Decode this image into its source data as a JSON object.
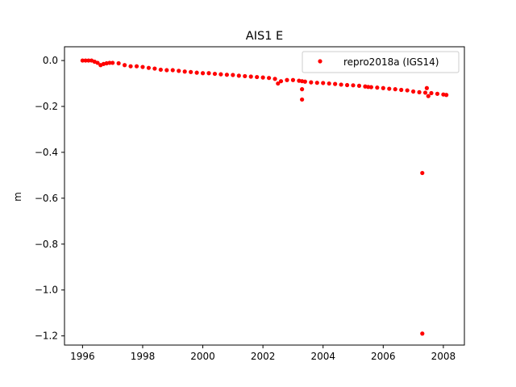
{
  "chart_data": {
    "type": "scatter",
    "title": "AIS1 E",
    "xlabel": "",
    "ylabel": "m",
    "xlim": [
      1995.4,
      2008.7
    ],
    "ylim": [
      -1.24,
      0.06
    ],
    "xticks": [
      1996,
      1998,
      2000,
      2002,
      2004,
      2006,
      2008
    ],
    "yticks": [
      0.0,
      -0.2,
      -0.4,
      -0.6,
      -0.8,
      -1.0,
      -1.2
    ],
    "xtick_labels": [
      "1996",
      "1998",
      "2000",
      "2002",
      "2004",
      "2006",
      "2008"
    ],
    "ytick_labels": [
      "0.0",
      "−0.2",
      "−0.4",
      "−0.6",
      "−0.8",
      "−1.0",
      "−1.2"
    ],
    "grid": false,
    "legend_position": "top-right",
    "series": [
      {
        "name": "repro2018a (IGS14)",
        "color": "#ff0000",
        "marker": "circle",
        "x": [
          1996.0,
          1996.1,
          1996.2,
          1996.3,
          1996.4,
          1996.5,
          1996.6,
          1996.7,
          1996.8,
          1996.9,
          1997.0,
          1997.2,
          1997.4,
          1997.6,
          1997.8,
          1998.0,
          1998.2,
          1998.4,
          1998.6,
          1998.8,
          1999.0,
          1999.2,
          1999.4,
          1999.6,
          1999.8,
          2000.0,
          2000.2,
          2000.4,
          2000.6,
          2000.8,
          2001.0,
          2001.2,
          2001.4,
          2001.6,
          2001.8,
          2002.0,
          2002.2,
          2002.4,
          2002.5,
          2002.6,
          2002.8,
          2003.0,
          2003.2,
          2003.3,
          2003.4,
          2003.6,
          2003.8,
          2004.0,
          2004.2,
          2004.4,
          2004.6,
          2004.8,
          2005.0,
          2005.2,
          2005.4,
          2005.5,
          2005.6,
          2005.8,
          2006.0,
          2006.2,
          2006.4,
          2006.6,
          2006.8,
          2007.0,
          2007.2,
          2007.4,
          2007.6,
          2007.8,
          2008.0,
          2008.1,
          2003.3,
          2003.3,
          2007.3,
          2007.3,
          2007.45,
          2007.5
        ],
        "y": [
          0.0,
          0.0,
          0.0,
          0.0,
          -0.005,
          -0.01,
          -0.02,
          -0.015,
          -0.012,
          -0.01,
          -0.01,
          -0.012,
          -0.02,
          -0.025,
          -0.025,
          -0.028,
          -0.032,
          -0.035,
          -0.04,
          -0.042,
          -0.042,
          -0.045,
          -0.048,
          -0.05,
          -0.053,
          -0.055,
          -0.055,
          -0.058,
          -0.06,
          -0.062,
          -0.063,
          -0.066,
          -0.068,
          -0.07,
          -0.072,
          -0.074,
          -0.076,
          -0.08,
          -0.1,
          -0.09,
          -0.085,
          -0.085,
          -0.088,
          -0.09,
          -0.092,
          -0.095,
          -0.097,
          -0.098,
          -0.1,
          -0.102,
          -0.105,
          -0.107,
          -0.108,
          -0.11,
          -0.113,
          -0.115,
          -0.116,
          -0.118,
          -0.12,
          -0.123,
          -0.125,
          -0.128,
          -0.13,
          -0.135,
          -0.138,
          -0.14,
          -0.142,
          -0.145,
          -0.148,
          -0.15,
          -0.125,
          -0.17,
          -0.49,
          -1.19,
          -0.12,
          -0.155
        ]
      }
    ]
  }
}
